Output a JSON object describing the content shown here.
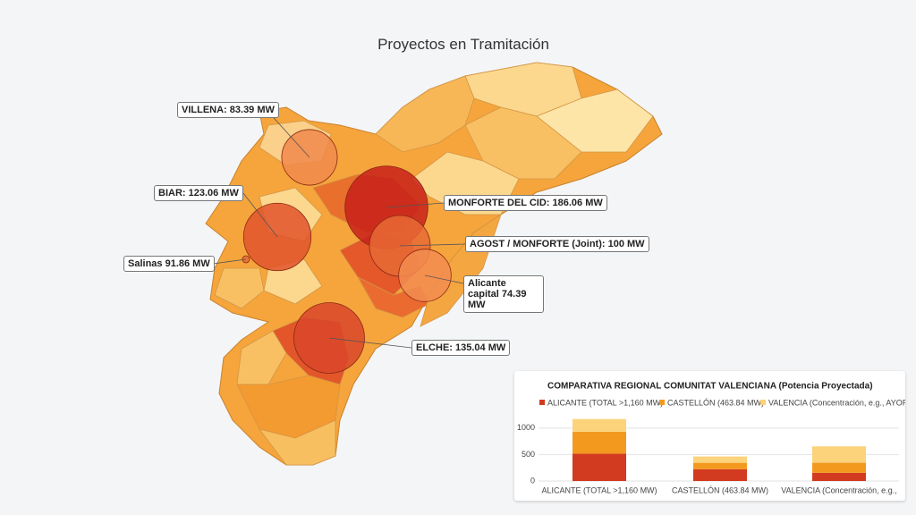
{
  "title": "Proyectos en Tramitación",
  "markers": [
    {
      "label": "VILLENA: 83.39 MW",
      "value": 83.39,
      "color": "#f08a4b"
    },
    {
      "label": "BIAR: 123.06 MW",
      "value": 123.06,
      "color": "#e0532b"
    },
    {
      "label": "Salinas 91.86 MW",
      "value": 91.86,
      "color": "#e86a35"
    },
    {
      "label": "MONFORTE DEL CID: 186.06 MW",
      "value": 186.06,
      "color": "#c8201a"
    },
    {
      "label": "AGOST / MONFORTE (Joint): 100 MW",
      "value": 100,
      "color": "#e86a35"
    },
    {
      "label": "Alicante capital 74.39 MW",
      "value": 74.39,
      "color": "#f28c50"
    },
    {
      "label": "ELCHE: 135.04 MW",
      "value": 135.04,
      "color": "#d9462a"
    }
  ],
  "chart_data": {
    "type": "stacked-bar",
    "title": "COMPARATIVA REGIONAL COMUNITAT VALENCIANA (Potencia Proyectada)",
    "categories": [
      "ALICANTE (TOTAL >1,160 MW)",
      "CASTELLÓN (463.84 MW)",
      "VALENCIA (Concentración, e.g.,"
    ],
    "series": [
      {
        "name": "ALICANTE (TOTAL >1,160 MW)",
        "color": "#d23b1f",
        "values": [
          517,
          224,
          155
        ]
      },
      {
        "name": "CASTELLÓN (463.84 MW)",
        "color": "#f39a1e",
        "values": [
          414,
          120,
          190
        ]
      },
      {
        "name": "VALENCIA (Concentración, e.g., AYORA)",
        "color": "#fcd27a",
        "values": [
          241,
          120,
          310
        ]
      }
    ],
    "ylim": [
      0,
      1200
    ],
    "yticks": [
      0,
      500,
      1000
    ],
    "grid": true
  }
}
